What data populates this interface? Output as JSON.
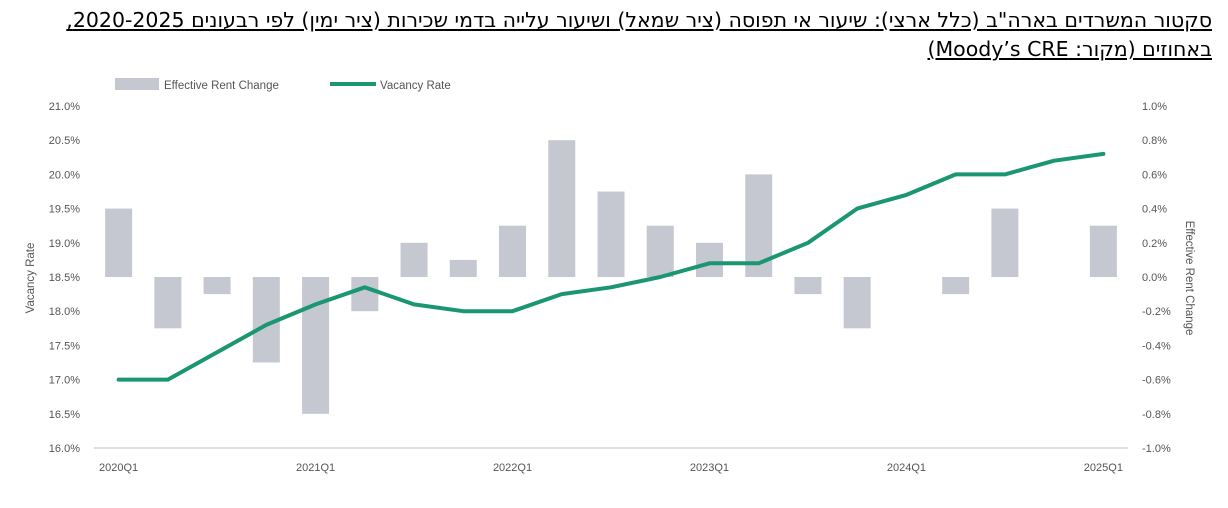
{
  "title": "סקטור המשרדים בארה\"ב (כלל ארצי): שיעור אי תפוסה (ציר שמאל) ושיעור עלייה בדמי שכירות (ציר ימין) לפי רבעונים 2020-2025, באחוזים (מקור: Moody’s CRE)",
  "colors": {
    "bars": "#c5c8d0",
    "line": "#1a9672",
    "axis": "#bfbfbf"
  },
  "chart_data": {
    "type": "bar+line",
    "x": [
      "2020Q1",
      "2020Q2",
      "2020Q3",
      "2020Q4",
      "2021Q1",
      "2021Q2",
      "2021Q3",
      "2021Q4",
      "2022Q1",
      "2022Q2",
      "2022Q3",
      "2022Q4",
      "2023Q1",
      "2023Q2",
      "2023Q3",
      "2023Q4",
      "2024Q1",
      "2024Q2",
      "2024Q3",
      "2024Q4",
      "2025Q1"
    ],
    "x_tick_labels": [
      "2020Q1",
      "2021Q1",
      "2022Q1",
      "2023Q1",
      "2024Q1",
      "2025Q1"
    ],
    "series": [
      {
        "name": "Effective Rent Change",
        "type": "bar",
        "axis": "right",
        "values": [
          0.4,
          -0.3,
          -0.1,
          -0.5,
          -0.8,
          -0.2,
          0.2,
          0.1,
          0.3,
          0.8,
          0.5,
          0.3,
          0.2,
          0.6,
          -0.1,
          -0.3,
          0.0,
          -0.1,
          0.4,
          0.0,
          0.3
        ]
      },
      {
        "name": "Vacancy Rate",
        "type": "line",
        "axis": "left",
        "values": [
          17.0,
          17.0,
          17.4,
          17.8,
          18.1,
          18.35,
          18.1,
          18.0,
          18.0,
          18.25,
          18.35,
          18.5,
          18.7,
          18.7,
          19.0,
          19.5,
          19.7,
          20.0,
          20.0,
          20.2,
          20.3
        ]
      }
    ],
    "ylabel_left": "Vacancy Rate",
    "ylabel_right": "Effective Rent Change",
    "ylim_left": [
      16.0,
      21.0
    ],
    "ylim_right": [
      -1.0,
      1.0
    ],
    "yticks_left": [
      "16.0%",
      "16.5%",
      "17.0%",
      "17.5%",
      "18.0%",
      "18.5%",
      "19.0%",
      "19.5%",
      "20.0%",
      "20.5%",
      "21.0%"
    ],
    "yticks_right": [
      "-1.0%",
      "-0.8%",
      "-0.6%",
      "-0.4%",
      "-0.2%",
      "0.0%",
      "0.2%",
      "0.4%",
      "0.6%",
      "0.8%",
      "1.0%"
    ],
    "legend_position": "top-left",
    "grid": false
  }
}
